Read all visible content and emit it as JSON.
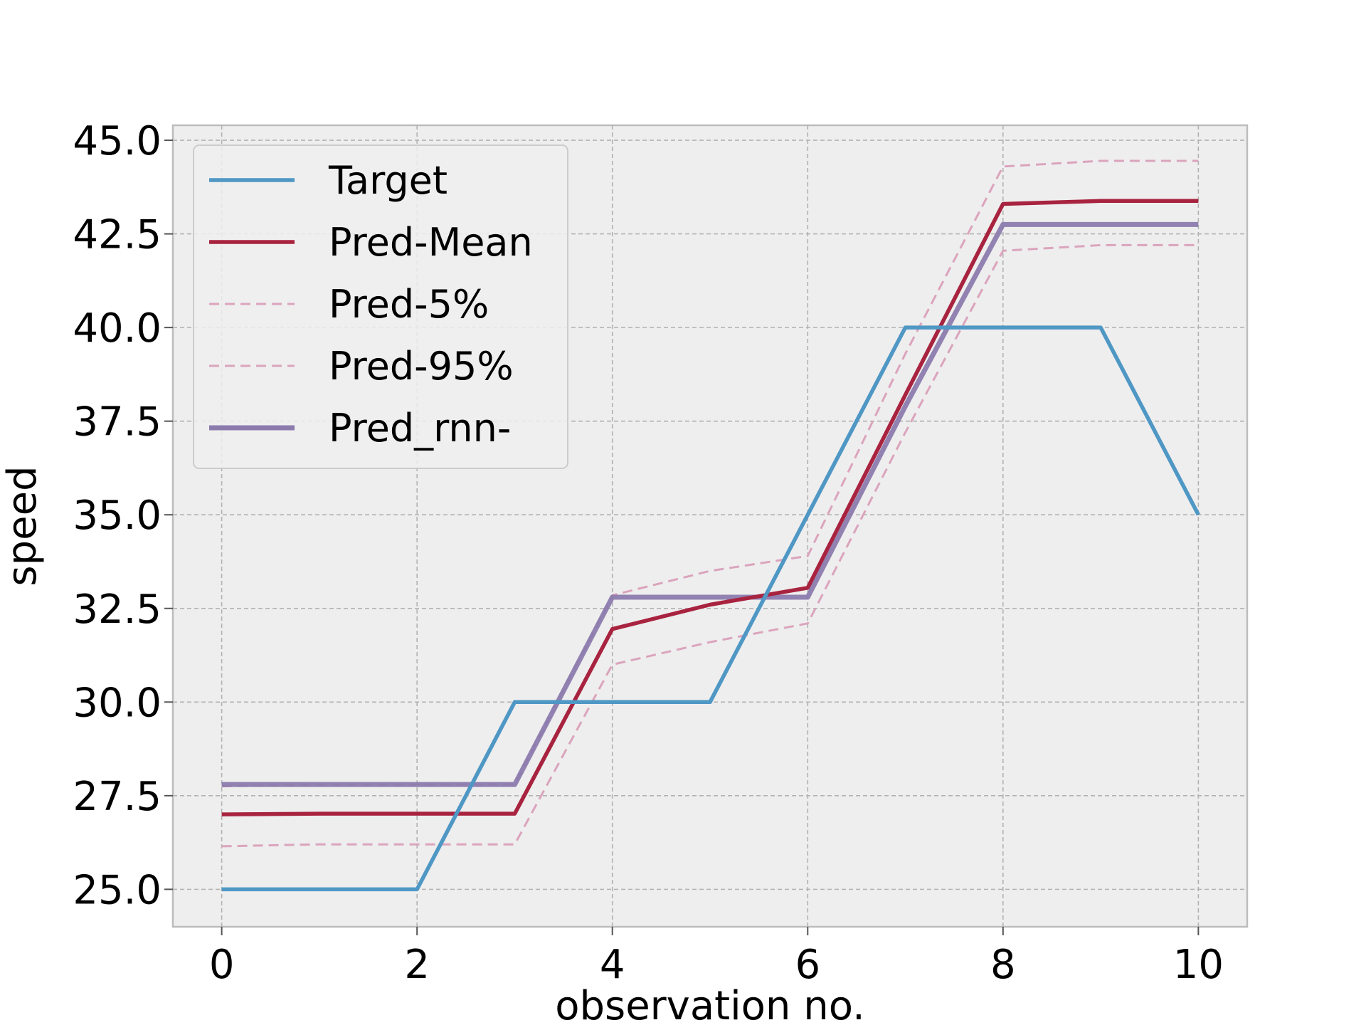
{
  "chart_data": {
    "type": "line",
    "title": "",
    "xlabel": "observation no.",
    "ylabel": "speed",
    "xlim": [
      -0.5,
      10.5
    ],
    "ylim": [
      24.0,
      45.4
    ],
    "xticks": [
      0,
      2,
      4,
      6,
      8,
      10
    ],
    "yticks": [
      25.0,
      27.5,
      30.0,
      32.5,
      35.0,
      37.5,
      40.0,
      42.5,
      45.0
    ],
    "xtick_labels": [
      "0",
      "2",
      "4",
      "6",
      "8",
      "10"
    ],
    "ytick_labels": [
      "25.0",
      "27.5",
      "30.0",
      "32.5",
      "35.0",
      "37.5",
      "40.0",
      "42.5",
      "45.0"
    ],
    "grid": true,
    "legend_position": "upper-left",
    "x": [
      0,
      1,
      2,
      3,
      4,
      5,
      6,
      7,
      8,
      9,
      10
    ],
    "series": [
      {
        "name": "Target",
        "color": "#4f97c4",
        "style": "solid",
        "values": [
          25.0,
          25.0,
          25.0,
          30.0,
          30.0,
          30.0,
          35.0,
          40.0,
          40.0,
          40.0,
          35.0
        ]
      },
      {
        "name": "Pred-Mean",
        "color": "#a8233f",
        "style": "solid",
        "values": [
          27.0,
          27.02,
          27.02,
          27.02,
          31.95,
          32.6,
          33.05,
          38.2,
          43.3,
          43.38,
          43.38
        ]
      },
      {
        "name": "Pred-5%",
        "color": "#dba4bd",
        "style": "dashed",
        "values": [
          26.15,
          26.2,
          26.2,
          26.2,
          31.0,
          31.6,
          32.1,
          37.2,
          42.05,
          42.2,
          42.2
        ]
      },
      {
        "name": "Pred-95%",
        "color": "#dba4bd",
        "style": "dashed",
        "values": [
          27.75,
          27.8,
          27.8,
          27.8,
          32.85,
          33.5,
          33.9,
          39.3,
          44.3,
          44.45,
          44.45
        ]
      },
      {
        "name": "Pred_rnn-",
        "color": "#8b7bad",
        "style": "solid",
        "values": [
          27.8,
          27.8,
          27.8,
          27.8,
          32.8,
          32.8,
          32.8,
          37.9,
          42.75,
          42.75,
          42.75
        ]
      }
    ]
  }
}
